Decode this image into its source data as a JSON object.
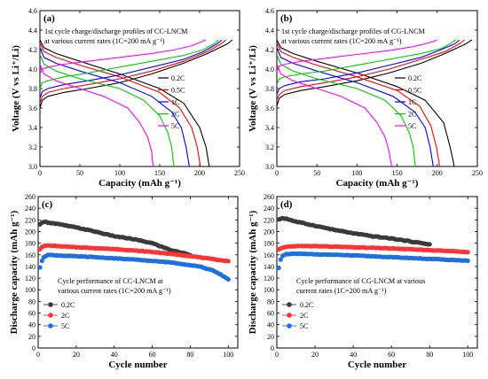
{
  "chart_data": [
    {
      "type": "line",
      "panel_label": "(a)",
      "annotation": [
        "1st cycle charge/discharge profiles of CC-LNCM",
        "at various current rates (1C=200 mA g⁻¹)"
      ],
      "xlabel": "Capacity (mAh g⁻¹)",
      "ylabel": "Voltage (V vs Li⁺/Li)",
      "xlim": [
        0,
        250
      ],
      "ylim": [
        3.0,
        4.6
      ],
      "xticks": [
        0,
        50,
        100,
        150,
        200,
        250
      ],
      "yticks": [
        3.0,
        3.2,
        3.4,
        3.6,
        3.8,
        4.0,
        4.2,
        4.4,
        4.6
      ],
      "legend_position": "middle-right",
      "series": [
        {
          "name": "0.2C",
          "color": "#000000",
          "charge": {
            "x": [
              0,
              3,
              10,
              30,
              60,
              100,
              140,
              180,
              210,
              235,
              241
            ],
            "y": [
              3.6,
              3.68,
              3.72,
              3.76,
              3.8,
              3.86,
              3.95,
              4.06,
              4.16,
              4.26,
              4.3
            ]
          },
          "discharge": {
            "x": [
              0,
              5,
              20,
              50,
              100,
              150,
              180,
              200,
              208,
              211,
              212
            ],
            "y": [
              4.3,
              4.22,
              4.16,
              4.08,
              3.95,
              3.8,
              3.65,
              3.4,
              3.2,
              3.05,
              3.0
            ]
          }
        },
        {
          "name": "0.5C",
          "color": "#ff0000",
          "charge": {
            "x": [
              0,
              3,
              10,
              30,
              60,
              100,
              140,
              180,
              210,
              227,
              233
            ],
            "y": [
              3.65,
              3.72,
              3.76,
              3.8,
              3.84,
              3.9,
              3.98,
              4.08,
              4.18,
              4.26,
              4.3
            ]
          },
          "discharge": {
            "x": [
              0,
              5,
              20,
              50,
              100,
              150,
              175,
              190,
              197,
              200,
              201
            ],
            "y": [
              4.27,
              4.18,
              4.12,
              4.04,
              3.92,
              3.76,
              3.6,
              3.4,
              3.2,
              3.05,
              3.0
            ]
          }
        },
        {
          "name": "1C",
          "color": "#0000ff",
          "charge": {
            "x": [
              0,
              3,
              10,
              30,
              60,
              100,
              140,
              180,
              205,
              222,
              228
            ],
            "y": [
              3.7,
              3.77,
              3.8,
              3.84,
              3.88,
              3.94,
              4.02,
              4.1,
              4.18,
              4.26,
              4.3
            ]
          },
          "discharge": {
            "x": [
              0,
              5,
              20,
              50,
              100,
              140,
              165,
              177,
              183,
              186,
              187
            ],
            "y": [
              4.22,
              4.12,
              4.06,
              3.98,
              3.86,
              3.72,
              3.56,
              3.4,
              3.2,
              3.05,
              3.0
            ]
          }
        },
        {
          "name": "2C",
          "color": "#00cc00",
          "charge": {
            "x": [
              0,
              3,
              10,
              30,
              60,
              100,
              140,
              180,
              205,
              218,
              224
            ],
            "y": [
              3.8,
              3.86,
              3.88,
              3.92,
              3.96,
              4.02,
              4.08,
              4.14,
              4.2,
              4.26,
              4.3
            ]
          },
          "discharge": {
            "x": [
              0,
              5,
              20,
              50,
              100,
              130,
              150,
              160,
              165,
              167,
              168
            ],
            "y": [
              4.15,
              4.05,
              3.98,
              3.9,
              3.8,
              3.68,
              3.52,
              3.35,
              3.2,
              3.05,
              3.0
            ]
          }
        },
        {
          "name": "5C",
          "color": "#ff00ff",
          "charge": {
            "x": [
              0,
              3,
              10,
              30,
              60,
              100,
              140,
              170,
              190,
              202,
              208
            ],
            "y": [
              3.95,
              4.0,
              4.02,
              4.05,
              4.08,
              4.12,
              4.16,
              4.2,
              4.24,
              4.28,
              4.3
            ]
          },
          "discharge": {
            "x": [
              0,
              5,
              20,
              50,
              80,
              110,
              125,
              135,
              140,
              141,
              142
            ],
            "y": [
              4.05,
              3.95,
              3.88,
              3.8,
              3.72,
              3.6,
              3.45,
              3.3,
              3.15,
              3.05,
              3.0
            ]
          }
        }
      ]
    },
    {
      "type": "line",
      "panel_label": "(b)",
      "annotation": [
        "1st cycle charge/discharge profiles of CG-LNCM",
        "at various current rates (1C=200 mA g⁻¹)"
      ],
      "xlabel": "Capacity (mAh g⁻¹)",
      "ylabel": "Voltage (V vs Li⁺/Li)",
      "xlim": [
        0,
        250
      ],
      "ylim": [
        3.0,
        4.6
      ],
      "xticks": [
        0,
        50,
        100,
        150,
        200,
        250
      ],
      "yticks": [
        3.0,
        3.2,
        3.4,
        3.6,
        3.8,
        4.0,
        4.2,
        4.4,
        4.6
      ],
      "legend_position": "middle-right",
      "series": [
        {
          "name": "0.2C",
          "color": "#000000",
          "charge": {
            "x": [
              0,
              3,
              10,
              30,
              60,
              100,
              140,
              180,
              210,
              236,
              243
            ],
            "y": [
              3.62,
              3.7,
              3.74,
              3.78,
              3.82,
              3.88,
              3.96,
              4.06,
              4.16,
              4.26,
              4.3
            ]
          },
          "discharge": {
            "x": [
              0,
              5,
              20,
              50,
              100,
              150,
              185,
              208,
              216,
              220,
              221
            ],
            "y": [
              4.3,
              4.22,
              4.16,
              4.08,
              3.96,
              3.82,
              3.68,
              3.45,
              3.2,
              3.05,
              3.0
            ]
          }
        },
        {
          "name": "0.5C",
          "color": "#ff0000",
          "charge": {
            "x": [
              0,
              3,
              10,
              30,
              60,
              100,
              140,
              180,
              210,
              228,
              234
            ],
            "y": [
              3.68,
              3.74,
              3.78,
              3.82,
              3.86,
              3.92,
              4.0,
              4.1,
              4.18,
              4.26,
              4.3
            ]
          },
          "discharge": {
            "x": [
              0,
              5,
              20,
              50,
              100,
              150,
              178,
              192,
              199,
              202,
              203
            ],
            "y": [
              4.27,
              4.18,
              4.12,
              4.04,
              3.92,
              3.78,
              3.62,
              3.42,
              3.2,
              3.05,
              3.0
            ]
          }
        },
        {
          "name": "1C",
          "color": "#0000ff",
          "charge": {
            "x": [
              0,
              3,
              10,
              30,
              60,
              100,
              140,
              180,
              205,
              222,
              228
            ],
            "y": [
              3.74,
              3.8,
              3.83,
              3.87,
              3.9,
              3.96,
              4.04,
              4.12,
              4.2,
              4.26,
              4.3
            ]
          },
          "discharge": {
            "x": [
              0,
              5,
              20,
              50,
              100,
              145,
              172,
              185,
              191,
              194,
              195
            ],
            "y": [
              4.22,
              4.12,
              4.06,
              3.98,
              3.86,
              3.72,
              3.56,
              3.4,
              3.2,
              3.05,
              3.0
            ]
          }
        },
        {
          "name": "2C",
          "color": "#00cc00",
          "charge": {
            "x": [
              0,
              3,
              10,
              30,
              60,
              100,
              140,
              180,
              205,
              218,
              223
            ],
            "y": [
              3.84,
              3.9,
              3.92,
              3.95,
              3.98,
              4.04,
              4.1,
              4.16,
              4.21,
              4.27,
              4.3
            ]
          },
          "discharge": {
            "x": [
              0,
              5,
              20,
              50,
              100,
              135,
              155,
              165,
              170,
              172,
              173
            ],
            "y": [
              4.15,
              4.05,
              3.98,
              3.9,
              3.8,
              3.68,
              3.52,
              3.35,
              3.2,
              3.05,
              3.0
            ]
          }
        },
        {
          "name": "5C",
          "color": "#ff00ff",
          "charge": {
            "x": [
              0,
              3,
              10,
              30,
              60,
              100,
              140,
              170,
              185,
              194,
              200
            ],
            "y": [
              3.98,
              4.03,
              4.05,
              4.08,
              4.11,
              4.15,
              4.19,
              4.23,
              4.26,
              4.28,
              4.3
            ]
          },
          "discharge": {
            "x": [
              0,
              5,
              20,
              50,
              80,
              110,
              125,
              135,
              140,
              142,
              143
            ],
            "y": [
              4.05,
              3.95,
              3.88,
              3.8,
              3.72,
              3.6,
              3.45,
              3.3,
              3.15,
              3.05,
              3.0
            ]
          }
        }
      ]
    },
    {
      "type": "scatter",
      "panel_label": "(c)",
      "annotation": [
        "Cycle performance of CC-LNCM at",
        "various current rates (1C=200 mA g⁻¹)"
      ],
      "xlabel": "Cycle number",
      "ylabel": "Discharge capacity (mAh g⁻¹)",
      "xlim": [
        0,
        105
      ],
      "ylim": [
        0,
        260
      ],
      "xticks": [
        0,
        20,
        40,
        60,
        80,
        100
      ],
      "yticks": [
        0,
        20,
        40,
        60,
        80,
        100,
        120,
        140,
        160,
        180,
        200,
        220,
        240,
        260
      ],
      "legend_position": "lower-left",
      "series": [
        {
          "name": "0.2C",
          "color": "#3a3a3a",
          "x0": 1,
          "x1": 80,
          "y_knots_x": [
            1,
            2,
            3,
            10,
            20,
            30,
            40,
            50,
            60,
            70,
            80
          ],
          "y_knots_y": [
            212,
            216,
            217,
            213,
            207,
            200,
            192,
            187,
            180,
            168,
            160
          ]
        },
        {
          "name": "2C",
          "color": "#ff3333",
          "x0": 1,
          "x1": 100,
          "y_knots_x": [
            1,
            2,
            3,
            5,
            20,
            40,
            60,
            80,
            100
          ],
          "y_knots_y": [
            170,
            173,
            175,
            176,
            173,
            170,
            165,
            158,
            149
          ]
        },
        {
          "name": "5C",
          "color": "#1f6fe0",
          "x0": 1,
          "x1": 100,
          "y_knots_x": [
            1,
            2,
            3,
            5,
            10,
            30,
            50,
            70,
            85,
            92,
            96,
            100
          ],
          "y_knots_y": [
            138,
            150,
            156,
            160,
            159,
            156,
            152,
            147,
            140,
            133,
            126,
            118
          ]
        }
      ]
    },
    {
      "type": "scatter",
      "panel_label": "(d)",
      "annotation": [
        "Cycle performance of CG-LNCM at various",
        "current rates (1C=200 mA g⁻¹)"
      ],
      "xlabel": "Cycle number",
      "ylabel": "Discharge capacity (mAh g⁻¹)",
      "xlim": [
        0,
        105
      ],
      "ylim": [
        0,
        260
      ],
      "xticks": [
        0,
        20,
        40,
        60,
        80,
        100
      ],
      "yticks": [
        0,
        20,
        40,
        60,
        80,
        100,
        120,
        140,
        160,
        180,
        200,
        220,
        240,
        260
      ],
      "legend_position": "lower-left",
      "series": [
        {
          "name": "0.2C",
          "color": "#3a3a3a",
          "x0": 1,
          "x1": 80,
          "y_knots_x": [
            1,
            3,
            5,
            10,
            20,
            30,
            40,
            50,
            60,
            70,
            80
          ],
          "y_knots_y": [
            221,
            223,
            222,
            217,
            210,
            203,
            197,
            192,
            188,
            183,
            178
          ]
        },
        {
          "name": "2C",
          "color": "#ff3333",
          "x0": 1,
          "x1": 100,
          "y_knots_x": [
            1,
            3,
            5,
            10,
            20,
            40,
            60,
            80,
            100
          ],
          "y_knots_y": [
            169,
            172,
            174,
            175,
            175,
            173,
            171,
            168,
            165
          ]
        },
        {
          "name": "5C",
          "color": "#1f6fe0",
          "x0": 1,
          "x1": 100,
          "y_knots_x": [
            1,
            2,
            3,
            5,
            10,
            20,
            40,
            60,
            80,
            100
          ],
          "y_knots_y": [
            138,
            152,
            158,
            161,
            162,
            161,
            159,
            156,
            153,
            150
          ]
        }
      ]
    }
  ]
}
